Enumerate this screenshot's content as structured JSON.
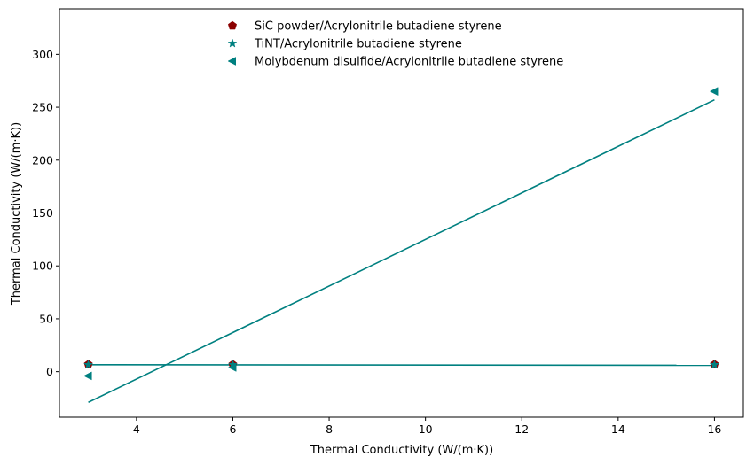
{
  "chart_data": {
    "type": "scatter",
    "xlabel": "Thermal Conductivity (W/(m·K))",
    "ylabel": "Thermal Conductivity (W/(m·K))",
    "xlim": [
      2.4,
      16.6
    ],
    "ylim": [
      -43,
      343
    ],
    "xticks": [
      4,
      6,
      8,
      10,
      12,
      14,
      16
    ],
    "yticks": [
      0,
      50,
      100,
      150,
      200,
      250,
      300
    ],
    "grid": false,
    "legend_position": "upper-center",
    "series": [
      {
        "name": "SiC powder/Acrylonitrile butadiene styrene",
        "marker": "pentagon",
        "color": "#8b0000",
        "x": [
          3,
          6,
          16
        ],
        "y": [
          6.9,
          6.8,
          6.9
        ]
      },
      {
        "name": "TiNT/Acrylonitrile butadiene styrene",
        "marker": "star",
        "color": "#008080",
        "x": [
          3,
          6,
          16
        ],
        "y": [
          6.5,
          6.6,
          6.5
        ],
        "fit": {
          "x": [
            3,
            16
          ],
          "y": [
            6.6,
            6.0
          ]
        }
      },
      {
        "name": "Molybdenum disulfide/Acrylonitrile butadiene styrene",
        "marker": "triangle-left",
        "color": "#008080",
        "x": [
          3,
          6,
          16
        ],
        "y": [
          -4,
          4,
          265
        ],
        "fit": {
          "x": [
            3,
            16
          ],
          "y": [
            -29,
            257
          ]
        }
      }
    ]
  }
}
